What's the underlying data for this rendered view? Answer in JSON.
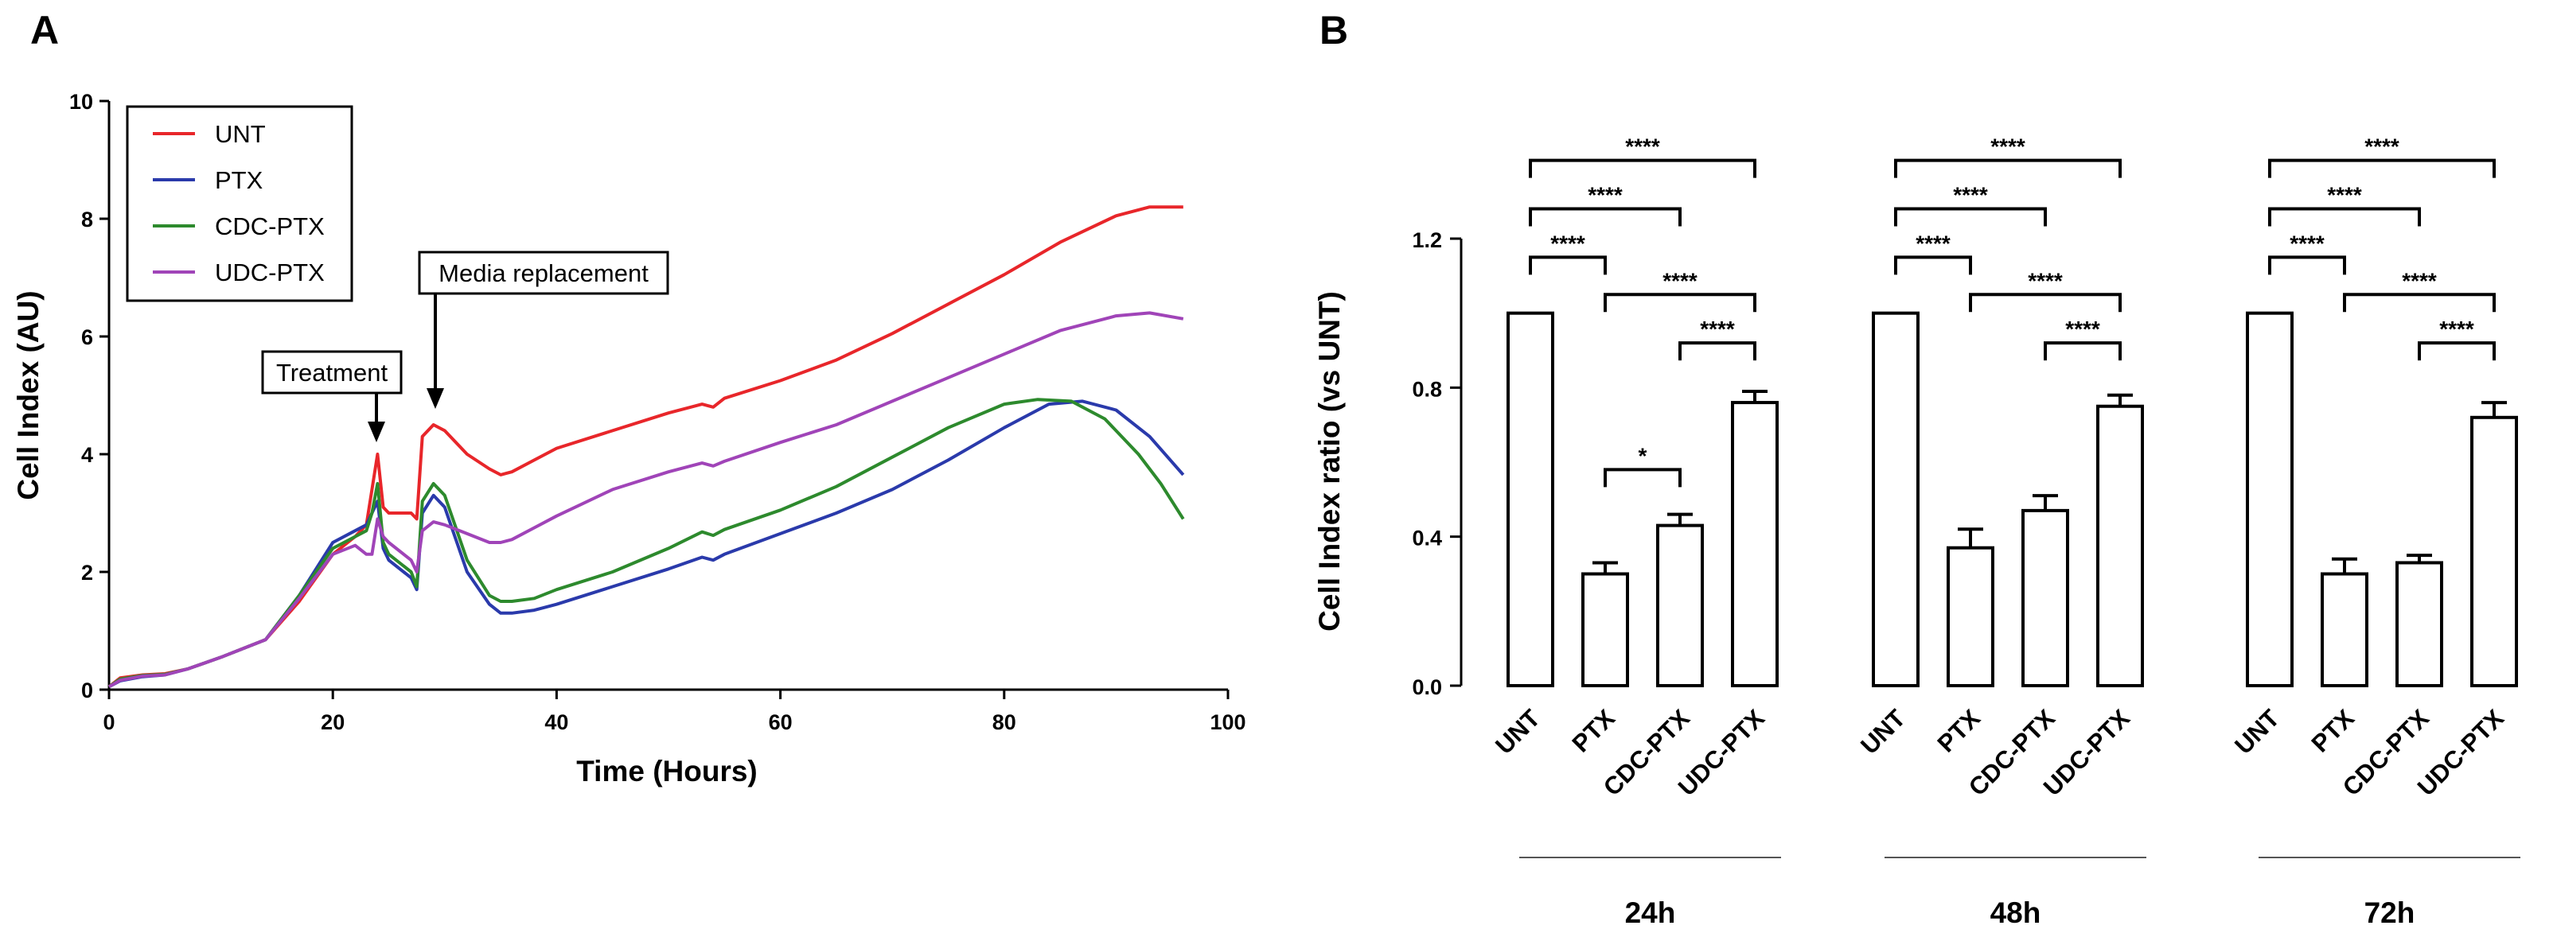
{
  "panels": {
    "a": "A",
    "b": "B"
  },
  "chart_data": [
    {
      "type": "line",
      "panel": "A",
      "title": "",
      "xlabel": "Time (Hours)",
      "ylabel": "Cell Index (AU)",
      "xlim": [
        0,
        100
      ],
      "ylim": [
        0,
        10
      ],
      "xticks": [
        "0",
        "20",
        "40",
        "60",
        "80",
        "100"
      ],
      "yticks": [
        "0",
        "2",
        "4",
        "6",
        "8",
        "10"
      ],
      "legend": [
        "UNT",
        "PTX",
        "CDC-PTX",
        "UDC-PTX"
      ],
      "legend_position": "top-left",
      "annotations": [
        {
          "text": "Treatment",
          "x": 24,
          "y": 4.3
        },
        {
          "text": "Media replacement",
          "x": 29,
          "y": 4.75
        }
      ],
      "series": [
        {
          "name": "UNT",
          "color": "#e8262a",
          "x": [
            0,
            1,
            3,
            5,
            7,
            10,
            14,
            17,
            20,
            22,
            23,
            23.5,
            24,
            24.5,
            25,
            27,
            27.5,
            28,
            29,
            30,
            32,
            34,
            35,
            36,
            38,
            40,
            45,
            50,
            53,
            54,
            55,
            60,
            65,
            70,
            75,
            80,
            85,
            90,
            93,
            96
          ],
          "y": [
            0.05,
            0.2,
            0.25,
            0.27,
            0.35,
            0.55,
            0.85,
            1.5,
            2.3,
            2.6,
            2.8,
            3.4,
            4.0,
            3.1,
            3.0,
            3.0,
            2.9,
            4.3,
            4.5,
            4.4,
            4.0,
            3.75,
            3.65,
            3.7,
            3.9,
            4.1,
            4.4,
            4.7,
            4.85,
            4.8,
            4.95,
            5.25,
            5.6,
            6.05,
            6.55,
            7.05,
            7.6,
            8.05,
            8.2,
            8.2
          ]
        },
        {
          "name": "PTX",
          "color": "#2a3aab",
          "x": [
            0,
            1,
            3,
            5,
            7,
            10,
            14,
            17,
            20,
            22,
            23,
            23.5,
            24,
            24.5,
            25,
            27,
            27.5,
            28,
            29,
            30,
            32,
            34,
            35,
            36,
            38,
            40,
            45,
            50,
            53,
            54,
            55,
            60,
            65,
            70,
            75,
            80,
            84,
            87,
            90,
            93,
            96
          ],
          "y": [
            0.05,
            0.15,
            0.22,
            0.25,
            0.35,
            0.55,
            0.85,
            1.6,
            2.5,
            2.7,
            2.8,
            3.0,
            3.2,
            2.4,
            2.2,
            1.9,
            1.7,
            3.0,
            3.3,
            3.1,
            2.0,
            1.45,
            1.3,
            1.3,
            1.35,
            1.45,
            1.75,
            2.05,
            2.25,
            2.2,
            2.3,
            2.65,
            3.0,
            3.4,
            3.9,
            4.45,
            4.85,
            4.9,
            4.75,
            4.3,
            3.65
          ]
        },
        {
          "name": "CDC-PTX",
          "color": "#2d8a2d",
          "x": [
            0,
            1,
            3,
            5,
            7,
            10,
            14,
            17,
            20,
            22,
            23,
            23.5,
            24,
            24.5,
            25,
            27,
            27.5,
            28,
            29,
            30,
            32,
            34,
            35,
            36,
            38,
            40,
            45,
            50,
            53,
            54,
            55,
            60,
            65,
            70,
            75,
            80,
            83,
            86,
            89,
            92,
            94,
            96
          ],
          "y": [
            0.05,
            0.18,
            0.24,
            0.26,
            0.35,
            0.55,
            0.85,
            1.6,
            2.4,
            2.6,
            2.7,
            3.0,
            3.5,
            2.5,
            2.3,
            2.0,
            1.75,
            3.2,
            3.5,
            3.3,
            2.2,
            1.6,
            1.5,
            1.5,
            1.55,
            1.7,
            2.0,
            2.4,
            2.68,
            2.62,
            2.72,
            3.05,
            3.45,
            3.95,
            4.45,
            4.85,
            4.93,
            4.9,
            4.6,
            4.0,
            3.5,
            2.9
          ]
        },
        {
          "name": "UDC-PTX",
          "color": "#a044b8",
          "x": [
            0,
            1,
            3,
            5,
            7,
            10,
            14,
            17,
            20,
            22,
            23,
            23.5,
            24,
            24.5,
            25,
            27,
            27.5,
            28,
            29,
            30,
            32,
            34,
            35,
            36,
            38,
            40,
            45,
            50,
            53,
            54,
            55,
            60,
            65,
            70,
            75,
            80,
            85,
            90,
            93,
            96
          ],
          "y": [
            0.05,
            0.16,
            0.23,
            0.25,
            0.35,
            0.55,
            0.85,
            1.55,
            2.3,
            2.45,
            2.3,
            2.3,
            2.9,
            2.6,
            2.5,
            2.2,
            2.0,
            2.7,
            2.85,
            2.8,
            2.65,
            2.5,
            2.5,
            2.55,
            2.75,
            2.95,
            3.4,
            3.7,
            3.85,
            3.8,
            3.88,
            4.2,
            4.5,
            4.9,
            5.3,
            5.7,
            6.1,
            6.35,
            6.4,
            6.3
          ]
        }
      ]
    },
    {
      "type": "bar",
      "panel": "B",
      "title": "",
      "xlabel": "",
      "ylabel": "Cell Index ratio (vs UNT)",
      "ylim": [
        0,
        1.2
      ],
      "yticks": [
        "0.0",
        "0.4",
        "0.8",
        "1.2"
      ],
      "categories": [
        "UNT",
        "PTX",
        "CDC-PTX",
        "UDC-PTX"
      ],
      "groups": [
        {
          "label": "24h",
          "values": [
            1.0,
            0.3,
            0.43,
            0.76
          ],
          "errors": [
            0,
            0.03,
            0.03,
            0.03
          ]
        },
        {
          "label": "48h",
          "values": [
            1.0,
            0.37,
            0.47,
            0.75
          ],
          "errors": [
            0,
            0.05,
            0.04,
            0.03
          ]
        },
        {
          "label": "72h",
          "values": [
            1.0,
            0.3,
            0.33,
            0.72
          ],
          "errors": [
            0,
            0.04,
            0.02,
            0.04
          ]
        }
      ],
      "significance": [
        {
          "group": "24h",
          "from": "UNT",
          "to": "PTX",
          "label": "****"
        },
        {
          "group": "24h",
          "from": "UNT",
          "to": "CDC-PTX",
          "label": "****"
        },
        {
          "group": "24h",
          "from": "UNT",
          "to": "UDC-PTX",
          "label": "****"
        },
        {
          "group": "24h",
          "from": "PTX",
          "to": "UDC-PTX",
          "label": "****"
        },
        {
          "group": "24h",
          "from": "CDC-PTX",
          "to": "UDC-PTX",
          "label": "****"
        },
        {
          "group": "24h",
          "from": "PTX",
          "to": "CDC-PTX",
          "label": "*"
        },
        {
          "group": "48h",
          "from": "UNT",
          "to": "PTX",
          "label": "****"
        },
        {
          "group": "48h",
          "from": "UNT",
          "to": "CDC-PTX",
          "label": "****"
        },
        {
          "group": "48h",
          "from": "UNT",
          "to": "UDC-PTX",
          "label": "****"
        },
        {
          "group": "48h",
          "from": "PTX",
          "to": "UDC-PTX",
          "label": "****"
        },
        {
          "group": "48h",
          "from": "CDC-PTX",
          "to": "UDC-PTX",
          "label": "****"
        },
        {
          "group": "72h",
          "from": "UNT",
          "to": "PTX",
          "label": "****"
        },
        {
          "group": "72h",
          "from": "UNT",
          "to": "CDC-PTX",
          "label": "****"
        },
        {
          "group": "72h",
          "from": "UNT",
          "to": "UDC-PTX",
          "label": "****"
        },
        {
          "group": "72h",
          "from": "PTX",
          "to": "UDC-PTX",
          "label": "****"
        },
        {
          "group": "72h",
          "from": "CDC-PTX",
          "to": "UDC-PTX",
          "label": "****"
        }
      ]
    }
  ]
}
